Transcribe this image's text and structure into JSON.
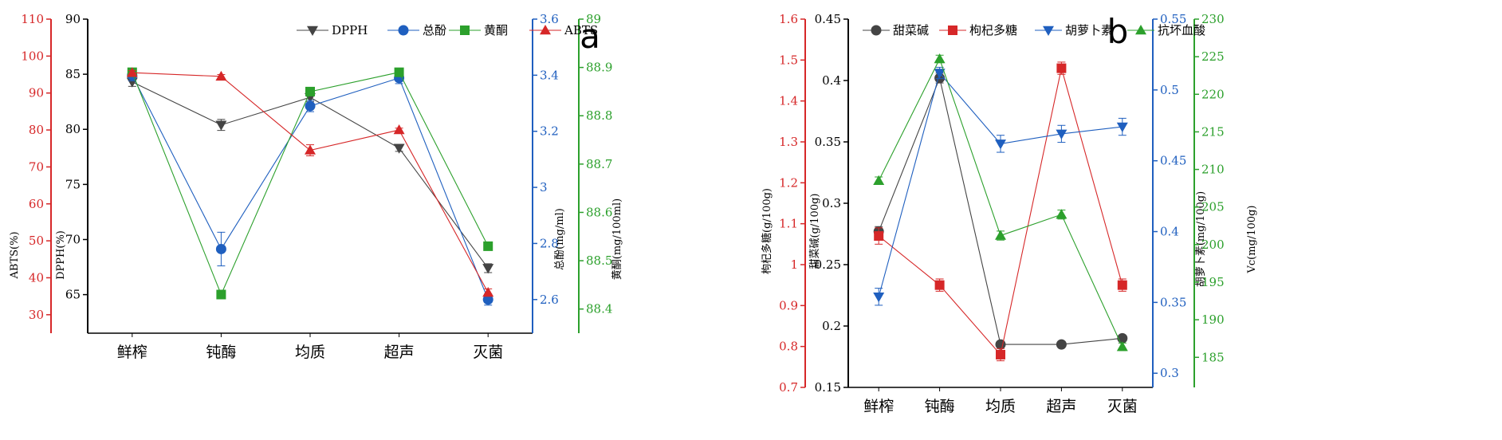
{
  "chart_data": [
    {
      "type": "line",
      "panel_label": "a",
      "categories": [
        "鲜榨",
        "钝酶",
        "均质",
        "超声",
        "灭菌"
      ],
      "legend_position": "top",
      "axes": [
        {
          "id": "abts",
          "label": "ABTS(%)",
          "color": "#d62728",
          "side": "left",
          "range": [
            25,
            110
          ],
          "ticks": [
            30,
            40,
            50,
            60,
            70,
            80,
            90,
            100,
            110
          ]
        },
        {
          "id": "dpph",
          "label": "DPPH(%)",
          "color": "#000000",
          "side": "left",
          "range": [
            61.5,
            90
          ],
          "ticks": [
            65,
            70,
            75,
            80,
            85,
            90
          ]
        },
        {
          "id": "tp",
          "label": "总酚(mg/ml)",
          "color": "#1f5fbf",
          "side": "right",
          "range": [
            2.48,
            3.6
          ],
          "ticks": [
            2.6,
            2.8,
            3.0,
            3.2,
            3.4,
            3.6
          ]
        },
        {
          "id": "fl",
          "label": "黄酮(mg/100ml)",
          "color": "#2ca02c",
          "side": "right",
          "range": [
            88.35,
            89.0
          ],
          "ticks": [
            88.4,
            88.5,
            88.6,
            88.7,
            88.8,
            88.9,
            89.0
          ]
        }
      ],
      "series": [
        {
          "name": "DPPH",
          "axis": "dpph",
          "color": "#444444",
          "marker": "triangle-down",
          "values": [
            84.3,
            80.4,
            82.9,
            78.3,
            67.4
          ],
          "errors": [
            0.4,
            0.5,
            0.4,
            0.3,
            0.4
          ]
        },
        {
          "name": "总酚",
          "axis": "tp",
          "color": "#1f5fbf",
          "marker": "circle",
          "values": [
            3.4,
            2.78,
            3.29,
            3.39,
            2.6
          ],
          "errors": [
            0.02,
            0.06,
            0.02,
            0.02,
            0.02
          ]
        },
        {
          "name": "黄酮",
          "axis": "fl",
          "color": "#2ca02c",
          "marker": "square",
          "values": [
            88.89,
            88.43,
            88.85,
            88.89,
            88.53
          ],
          "errors": [
            0.005,
            0.004,
            0.005,
            0.005,
            0.004
          ]
        },
        {
          "name": "ABTS",
          "axis": "abts",
          "color": "#d62728",
          "marker": "triangle-up",
          "values": [
            95.5,
            94.5,
            74.5,
            80.0,
            36.0
          ],
          "errors": [
            0.6,
            0.5,
            1.5,
            0.5,
            1.0
          ]
        }
      ]
    },
    {
      "type": "line",
      "panel_label": "b",
      "categories": [
        "鲜榨",
        "钝酶",
        "均质",
        "超声",
        "灭菌"
      ],
      "legend_position": "top",
      "axes": [
        {
          "id": "lbp",
          "label": "枸杞多糖(g/100g)",
          "color": "#d62728",
          "side": "left",
          "range": [
            0.7,
            1.6
          ],
          "ticks": [
            0.7,
            0.8,
            0.9,
            1.0,
            1.1,
            1.2,
            1.3,
            1.4,
            1.5,
            1.6
          ]
        },
        {
          "id": "bet",
          "label": "甜菜碱(g/100g)",
          "color": "#000000",
          "side": "left",
          "range": [
            0.15,
            0.45
          ],
          "ticks": [
            0.15,
            0.2,
            0.25,
            0.3,
            0.35,
            0.4,
            0.45
          ]
        },
        {
          "id": "car",
          "label": "胡萝卜素(mg/100g)",
          "color": "#1f5fbf",
          "side": "right",
          "range": [
            0.29,
            0.55
          ],
          "ticks": [
            0.3,
            0.35,
            0.4,
            0.45,
            0.5,
            0.55
          ]
        },
        {
          "id": "vc",
          "label": "Vc(mg/100g)",
          "color": "#2ca02c",
          "side": "right",
          "range": [
            181,
            230
          ],
          "ticks": [
            185,
            190,
            195,
            200,
            205,
            210,
            215,
            220,
            225,
            230
          ]
        }
      ],
      "series": [
        {
          "name": "甜菜碱",
          "axis": "bet",
          "color": "#444444",
          "marker": "circle",
          "values": [
            0.277,
            0.402,
            0.185,
            0.185,
            0.19
          ],
          "errors": [
            0.004,
            0.004,
            0.002,
            0.002,
            0.002
          ]
        },
        {
          "name": "枸杞多糖",
          "axis": "lbp",
          "color": "#d62728",
          "marker": "square",
          "values": [
            1.07,
            0.95,
            0.78,
            1.48,
            0.95
          ],
          "errors": [
            0.02,
            0.015,
            0.015,
            0.015,
            0.015
          ]
        },
        {
          "name": "胡萝卜素",
          "axis": "car",
          "color": "#1f5fbf",
          "marker": "triangle-down",
          "values": [
            0.354,
            0.512,
            0.462,
            0.469,
            0.474
          ],
          "errors": [
            0.006,
            0.004,
            0.006,
            0.006,
            0.006
          ]
        },
        {
          "name": "抗坏血酸",
          "axis": "vc",
          "color": "#2ca02c",
          "marker": "triangle-up",
          "values": [
            208.5,
            224.7,
            201.2,
            204.0,
            186.4
          ],
          "errors": [
            0.5,
            0.5,
            0.6,
            0.6,
            0.5
          ]
        }
      ]
    }
  ]
}
